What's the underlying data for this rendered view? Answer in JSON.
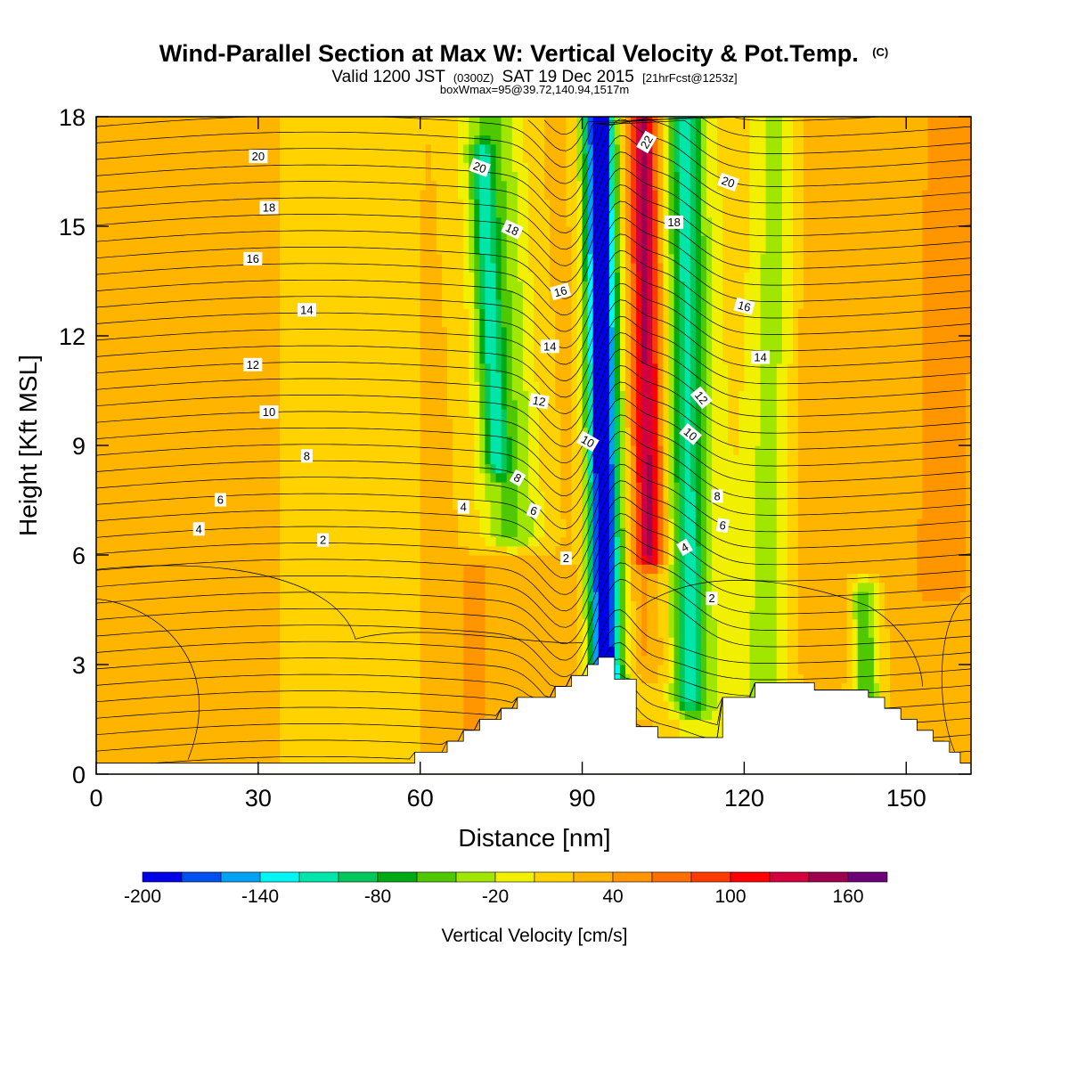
{
  "title": {
    "main": "Wind-Parallel Section at Max W: Vertical Velocity & Pot.Temp.",
    "main_suffix": "(C)",
    "line2_a": "Valid 1200 JST",
    "line2_b": "(0300Z)",
    "line2_c": "SAT 19 Dec 2015",
    "line2_d": "[21hrFcst@1253z]",
    "line3": "boxWmax=95@39.72,140.94,1517m"
  },
  "colorbar": {
    "title": "Vertical Velocity [cm/s]",
    "tick_labels": [
      "-200",
      "-140",
      "-80",
      "-20",
      "40",
      "100",
      "160"
    ],
    "tick_values": [
      -200,
      -140,
      -80,
      -20,
      40,
      100,
      160
    ],
    "bounds": [
      -200,
      -180,
      -160,
      -140,
      -120,
      -100,
      -80,
      -60,
      -40,
      -20,
      0,
      20,
      40,
      60,
      80,
      100,
      120,
      140,
      160,
      180
    ],
    "colors": [
      "#0000e6",
      "#0050f0",
      "#00a0f5",
      "#00f5f5",
      "#00e6aa",
      "#00c85a",
      "#00aa14",
      "#50c800",
      "#a0e600",
      "#f0f000",
      "#ffd200",
      "#ffb400",
      "#ff9600",
      "#ff6e00",
      "#ff3c00",
      "#ff0000",
      "#d2003c",
      "#a00050",
      "#6e0078"
    ]
  },
  "chart_data": {
    "type": "heatmap",
    "title": "Wind-Parallel Section at Max W: Vertical Velocity & Pot.Temp.",
    "xlabel": "Distance [nm]",
    "ylabel": "Height [Kft MSL]",
    "xlim": [
      0,
      162
    ],
    "ylim": [
      0,
      18
    ],
    "x_ticks": [
      0,
      30,
      60,
      90,
      120,
      150
    ],
    "y_ticks": [
      0,
      3,
      6,
      9,
      12,
      15,
      18
    ],
    "x_tick_labels": [
      "0",
      "30",
      "60",
      "90",
      "120",
      "150"
    ],
    "y_tick_labels": [
      "0",
      "3",
      "6",
      "9",
      "12",
      "15",
      "18"
    ],
    "background_w": 25,
    "w_features": [
      {
        "x_low": 94,
        "x_high": 93,
        "width": 2.5,
        "w": -140,
        "y_bottom": 2.5,
        "y_top": 18
      },
      {
        "x_low": 96,
        "x_high": 93.5,
        "width": 3.5,
        "w": -80,
        "y_bottom": 2.0,
        "y_top": 18
      },
      {
        "x_low": 103,
        "x_high": 101.5,
        "width": 2.5,
        "w": 130,
        "y_bottom": 6.0,
        "y_top": 18
      },
      {
        "x_low": 101,
        "x_high": 100,
        "width": 4.0,
        "w": 50,
        "y_bottom": 3.0,
        "y_top": 18
      },
      {
        "x_low": 110,
        "x_high": 109,
        "width": 3.0,
        "w": -70,
        "y_bottom": 2.0,
        "y_top": 18
      },
      {
        "x_low": 113,
        "x_high": 110,
        "width": 7.0,
        "w": -15,
        "y_bottom": 1.0,
        "y_top": 18
      },
      {
        "x_low": 79,
        "x_high": 73,
        "width": 6.0,
        "w": -45,
        "y_bottom": 6.5,
        "y_top": 18
      },
      {
        "x_low": 77,
        "x_high": 71,
        "width": 2.0,
        "w": -55,
        "y_bottom": 8.5,
        "y_top": 17
      },
      {
        "x_low": 124,
        "x_high": 126,
        "width": 5.0,
        "w": -30,
        "y_bottom": 2.0,
        "y_top": 18
      },
      {
        "x_low": 133,
        "x_high": 131,
        "width": 6.0,
        "w": 40,
        "y_bottom": 3.0,
        "y_top": 18
      },
      {
        "x_low": 156,
        "x_high": 158,
        "width": 6.0,
        "w": 50,
        "y_bottom": 5.0,
        "y_top": 18
      },
      {
        "x_low": 143,
        "x_high": 140,
        "width": 2.5,
        "w": -55,
        "y_bottom": 1.5,
        "y_top": 5.0
      },
      {
        "x_low": 15,
        "x_high": 15,
        "width": 9.0,
        "w": 40,
        "y_bottom": 0,
        "y_top": 6.0
      },
      {
        "x_low": 47,
        "x_high": 47,
        "width": 11.0,
        "w": 5,
        "y_bottom": 0,
        "y_top": 18
      },
      {
        "x_low": 70,
        "x_high": 70,
        "width": 2.0,
        "w": 60,
        "y_bottom": 0.5,
        "y_top": 5.5
      }
    ],
    "terrain_profile": [
      [
        0,
        0.3
      ],
      [
        59,
        0.3
      ],
      [
        59,
        0.6
      ],
      [
        65,
        0.6
      ],
      [
        65,
        0.9
      ],
      [
        68,
        0.9
      ],
      [
        68,
        1.2
      ],
      [
        71,
        1.2
      ],
      [
        71,
        1.5
      ],
      [
        75,
        1.5
      ],
      [
        75,
        1.8
      ],
      [
        78,
        1.8
      ],
      [
        78,
        2.1
      ],
      [
        85,
        2.1
      ],
      [
        85,
        2.4
      ],
      [
        88,
        2.4
      ],
      [
        88,
        2.7
      ],
      [
        91,
        2.7
      ],
      [
        91,
        3.0
      ],
      [
        93,
        3.0
      ],
      [
        93,
        3.2
      ],
      [
        96,
        3.2
      ],
      [
        96,
        2.6
      ],
      [
        100,
        2.6
      ],
      [
        100,
        1.3
      ],
      [
        104,
        1.3
      ],
      [
        104,
        1.0
      ],
      [
        116,
        1.0
      ],
      [
        116,
        2.1
      ],
      [
        122,
        2.1
      ],
      [
        122,
        2.5
      ],
      [
        133,
        2.5
      ],
      [
        133,
        2.3
      ],
      [
        143,
        2.3
      ],
      [
        143,
        2.1
      ],
      [
        146,
        2.1
      ],
      [
        146,
        1.8
      ],
      [
        149,
        1.8
      ],
      [
        149,
        1.5
      ],
      [
        152,
        1.5
      ],
      [
        152,
        1.2
      ],
      [
        155,
        1.2
      ],
      [
        155,
        0.9
      ],
      [
        158,
        0.9
      ],
      [
        158,
        0.6
      ],
      [
        160,
        0.6
      ],
      [
        160,
        0.3
      ],
      [
        162,
        0.3
      ]
    ],
    "theta_levels": [
      0,
      2,
      4,
      6,
      8,
      10,
      12,
      14,
      16,
      18,
      20,
      22
    ],
    "contour_labels": [
      {
        "x": 30,
        "y": 16.9,
        "text": "20",
        "rot": 0
      },
      {
        "x": 32,
        "y": 15.5,
        "text": "18",
        "rot": 0
      },
      {
        "x": 29,
        "y": 14.1,
        "text": "16",
        "rot": 0
      },
      {
        "x": 39,
        "y": 12.7,
        "text": "14",
        "rot": 0
      },
      {
        "x": 29,
        "y": 11.2,
        "text": "12",
        "rot": 0
      },
      {
        "x": 32,
        "y": 9.9,
        "text": "10",
        "rot": 0
      },
      {
        "x": 39,
        "y": 8.7,
        "text": "8",
        "rot": 0
      },
      {
        "x": 23,
        "y": 7.5,
        "text": "6",
        "rot": 0
      },
      {
        "x": 19,
        "y": 6.7,
        "text": "4",
        "rot": 0
      },
      {
        "x": 42,
        "y": 6.4,
        "text": "2",
        "rot": 0
      },
      {
        "x": 68,
        "y": 7.3,
        "text": "4",
        "rot": 0
      },
      {
        "x": 71,
        "y": 16.6,
        "text": "20",
        "rot": 20
      },
      {
        "x": 77,
        "y": 14.9,
        "text": "18",
        "rot": 25
      },
      {
        "x": 86,
        "y": 13.2,
        "text": "16",
        "rot": -15
      },
      {
        "x": 84,
        "y": 11.7,
        "text": "14",
        "rot": 0
      },
      {
        "x": 82,
        "y": 10.2,
        "text": "12",
        "rot": 10
      },
      {
        "x": 91,
        "y": 9.1,
        "text": "10",
        "rot": 30
      },
      {
        "x": 78,
        "y": 8.1,
        "text": "8",
        "rot": 30
      },
      {
        "x": 81,
        "y": 7.2,
        "text": "6",
        "rot": 20
      },
      {
        "x": 87,
        "y": 5.9,
        "text": "2",
        "rot": 0
      },
      {
        "x": 102,
        "y": 17.3,
        "text": "22",
        "rot": -60
      },
      {
        "x": 107,
        "y": 15.1,
        "text": "18",
        "rot": 0
      },
      {
        "x": 117,
        "y": 16.2,
        "text": "20",
        "rot": 20
      },
      {
        "x": 120,
        "y": 12.8,
        "text": "16",
        "rot": 15
      },
      {
        "x": 123,
        "y": 11.4,
        "text": "14",
        "rot": 0
      },
      {
        "x": 112,
        "y": 10.3,
        "text": "12",
        "rot": 50
      },
      {
        "x": 110,
        "y": 9.3,
        "text": "10",
        "rot": 40
      },
      {
        "x": 115,
        "y": 7.6,
        "text": "8",
        "rot": 0
      },
      {
        "x": 116,
        "y": 6.8,
        "text": "6",
        "rot": 10
      },
      {
        "x": 109,
        "y": 6.2,
        "text": "4",
        "rot": -30
      },
      {
        "x": 114,
        "y": 4.8,
        "text": "2",
        "rot": 0
      }
    ]
  }
}
